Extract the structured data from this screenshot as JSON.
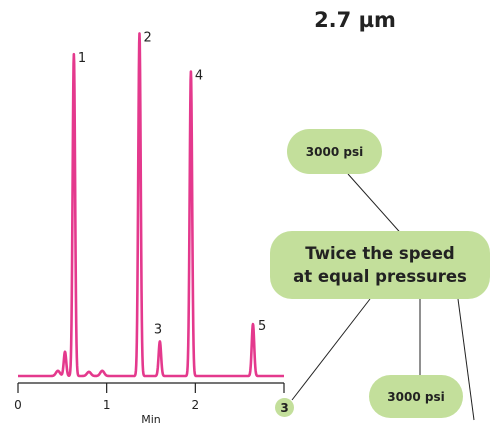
{
  "particle_size": "2.7 µm",
  "callouts": {
    "top_pressure": "3000 psi",
    "headline_line1": "Twice the speed",
    "headline_line2": "at equal pressures",
    "bottom_pressure": "3000 psi",
    "axis_end_marker": "3"
  },
  "chart_data": {
    "type": "line",
    "xlabel": "Min",
    "xlim": [
      0,
      3
    ],
    "x_ticks": [
      "0",
      "1",
      "2",
      "3"
    ],
    "ylim": [
      0,
      1
    ],
    "peak_color": "#e4398d",
    "peaks": [
      {
        "label": "1",
        "time": 0.63,
        "height": 0.93
      },
      {
        "label": "2",
        "time": 1.37,
        "height": 0.99
      },
      {
        "label": "3",
        "time": 1.6,
        "height": 0.1
      },
      {
        "label": "4",
        "time": 1.95,
        "height": 0.88
      },
      {
        "label": "5",
        "time": 2.65,
        "height": 0.15
      }
    ],
    "minor_peaks": [
      {
        "time": 0.53,
        "height": 0.07
      },
      {
        "time": 0.45,
        "height": 0.015
      },
      {
        "time": 0.8,
        "height": 0.012
      },
      {
        "time": 0.95,
        "height": 0.015
      }
    ]
  }
}
